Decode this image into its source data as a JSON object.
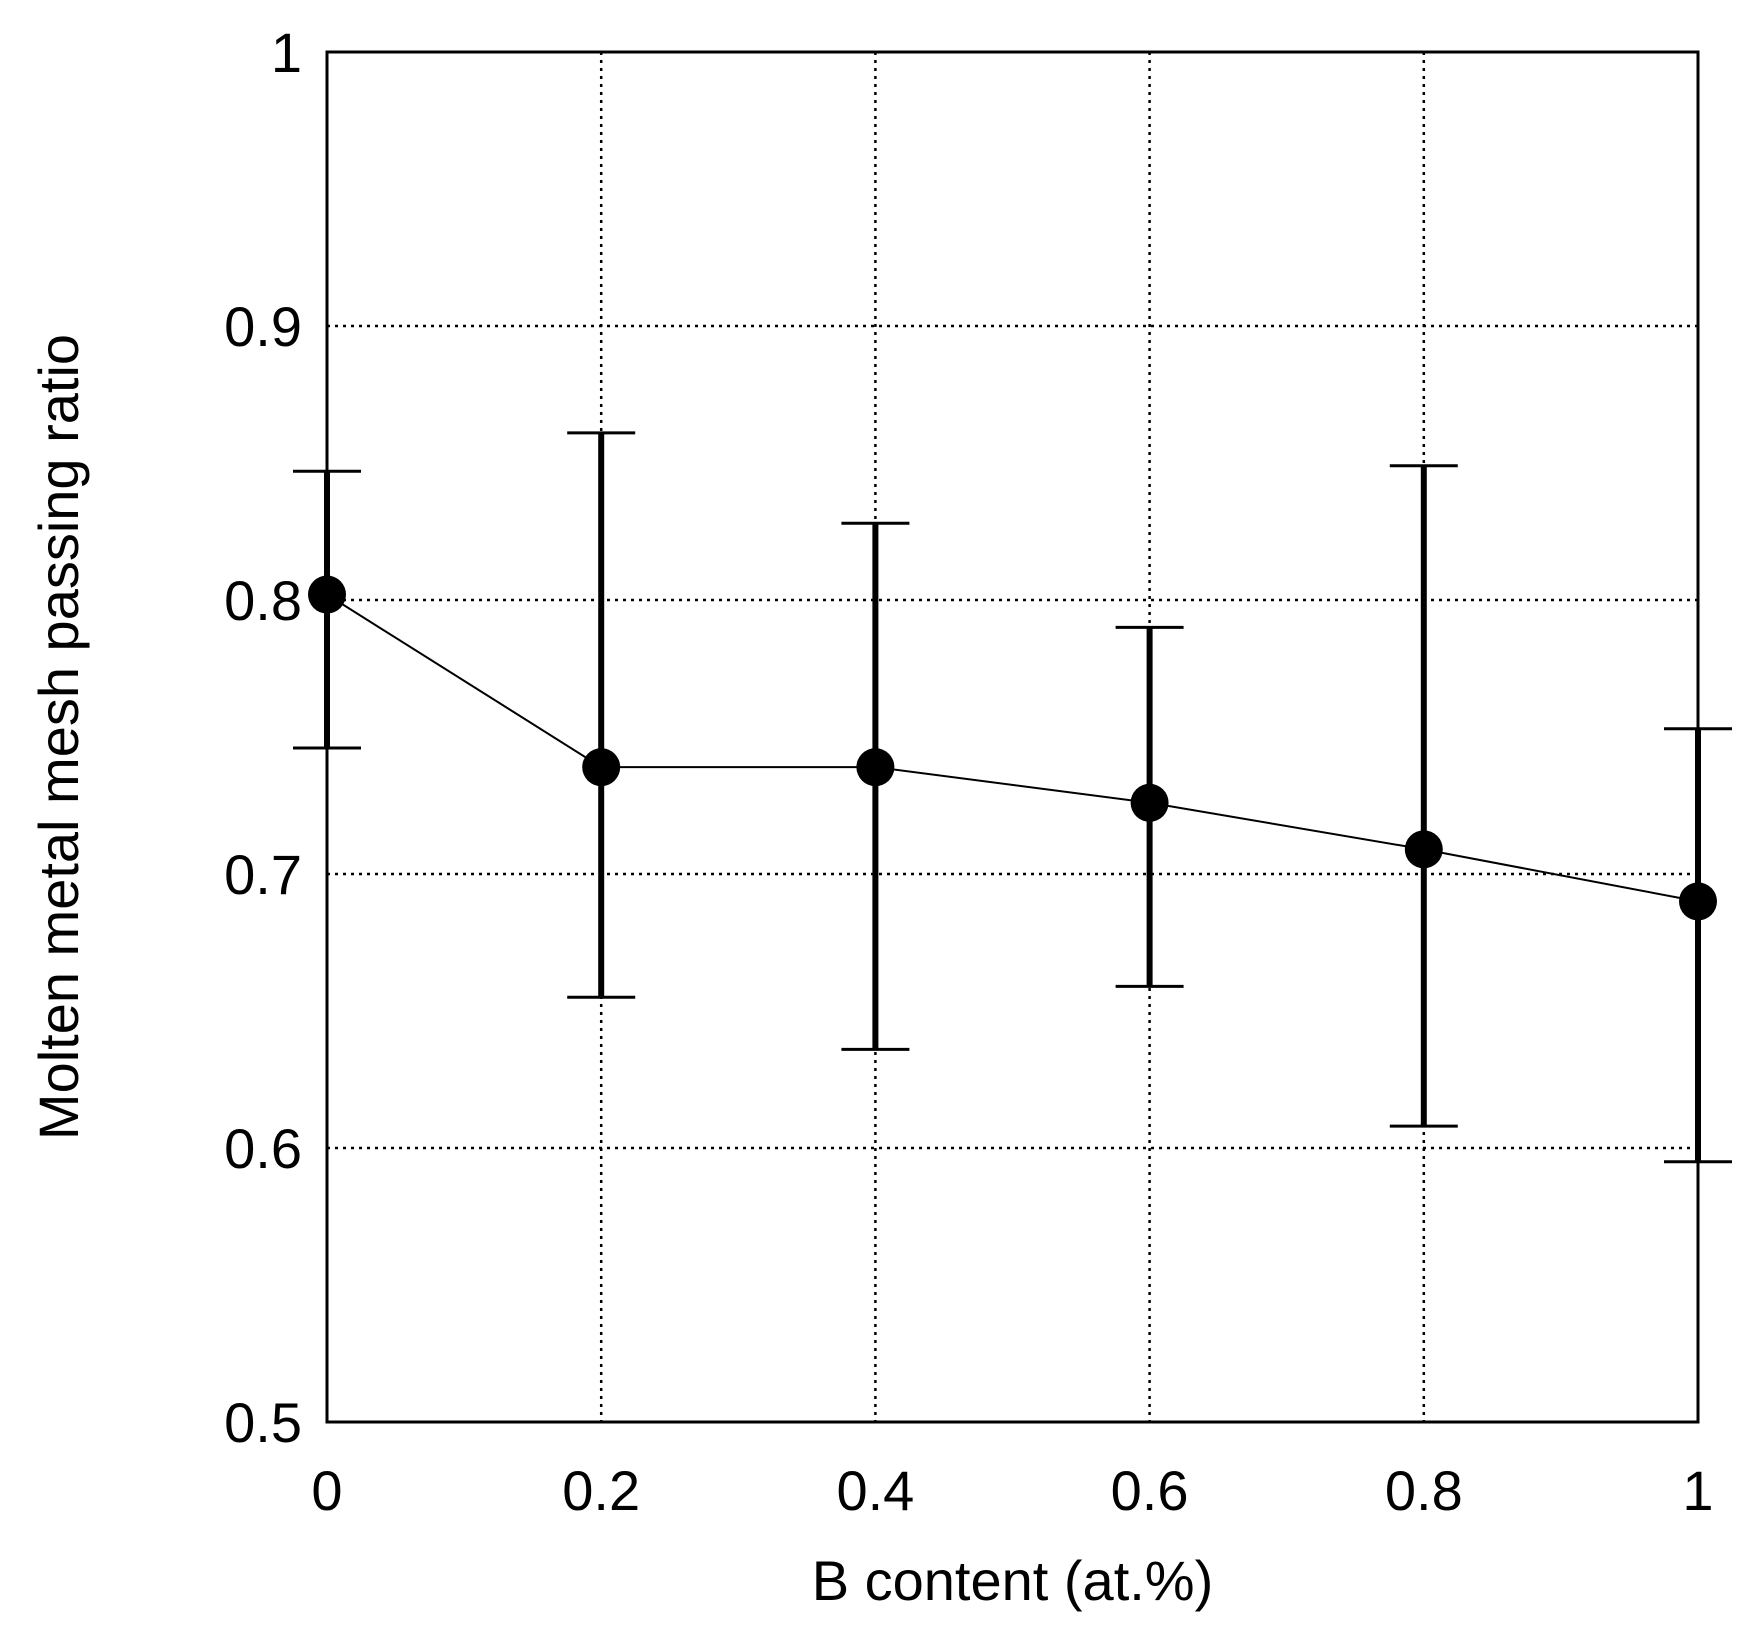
{
  "chart_data": {
    "type": "line",
    "xlabel": "B content (at.%)",
    "ylabel": "Molten metal mesh passing ratio",
    "xlim": [
      0,
      1
    ],
    "ylim": [
      0.5,
      1
    ],
    "x_ticks": [
      0,
      0.2,
      0.4,
      0.6,
      0.8,
      1
    ],
    "x_tick_labels": [
      "0",
      "0.2",
      "0.4",
      "0.6",
      "0.8",
      "1"
    ],
    "y_ticks": [
      0.5,
      0.6,
      0.7,
      0.8,
      0.9,
      1
    ],
    "y_tick_labels": [
      "0.5",
      "0.6",
      "0.7",
      "0.8",
      "0.9",
      "1"
    ],
    "grid": true,
    "series": [
      {
        "x": [
          0,
          0.2,
          0.4,
          0.6,
          0.8,
          1
        ],
        "y": [
          0.802,
          0.739,
          0.739,
          0.726,
          0.709,
          0.69
        ],
        "y_err_upper": [
          0.847,
          0.861,
          0.828,
          0.79,
          0.849,
          0.753
        ],
        "y_err_lower": [
          0.746,
          0.655,
          0.636,
          0.659,
          0.608,
          0.595
        ]
      }
    ]
  }
}
